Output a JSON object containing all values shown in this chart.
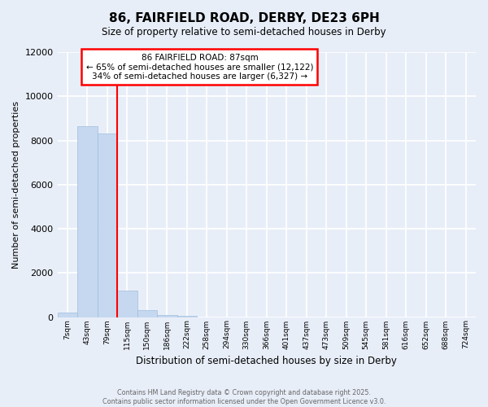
{
  "title": "86, FAIRFIELD ROAD, DERBY, DE23 6PH",
  "subtitle": "Size of property relative to semi-detached houses in Derby",
  "xlabel": "Distribution of semi-detached houses by size in Derby",
  "ylabel": "Number of semi-detached properties",
  "annotation_line1": "86 FAIRFIELD ROAD: 87sqm",
  "annotation_line2": "← 65% of semi-detached houses are smaller (12,122)",
  "annotation_line3": "34% of semi-detached houses are larger (6,327) →",
  "bar_categories": [
    "7sqm",
    "43sqm",
    "79sqm",
    "115sqm",
    "150sqm",
    "186sqm",
    "222sqm",
    "258sqm",
    "294sqm",
    "330sqm",
    "366sqm",
    "401sqm",
    "437sqm",
    "473sqm",
    "509sqm",
    "545sqm",
    "581sqm",
    "616sqm",
    "652sqm",
    "688sqm",
    "724sqm"
  ],
  "bar_values": [
    200,
    8650,
    8300,
    1200,
    320,
    80,
    50,
    0,
    0,
    0,
    0,
    0,
    0,
    0,
    0,
    0,
    0,
    0,
    0,
    0,
    0
  ],
  "bar_color": "#c5d8f0",
  "bar_edge_color": "#a0bedd",
  "red_line_x": 2.5,
  "ylim": [
    0,
    12000
  ],
  "yticks": [
    0,
    2000,
    4000,
    6000,
    8000,
    10000,
    12000
  ],
  "bg_color": "#e8eef8",
  "grid_color": "#ffffff",
  "footer_line1": "Contains HM Land Registry data © Crown copyright and database right 2025.",
  "footer_line2": "Contains public sector information licensed under the Open Government Licence v3.0."
}
